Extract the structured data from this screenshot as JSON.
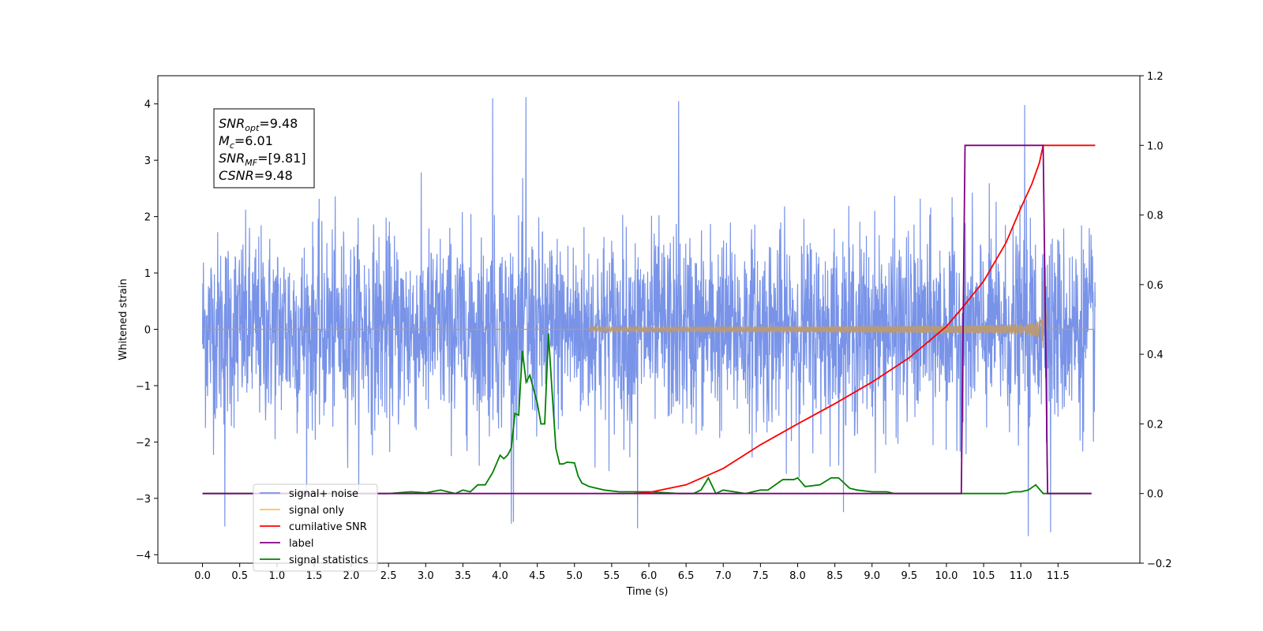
{
  "chart_data": {
    "type": "line",
    "title": "",
    "xlabel": "Time (s)",
    "ylabel": "Whitened strain",
    "xlim": [
      -0.6,
      12.6
    ],
    "ylim": [
      -4.15,
      4.5
    ],
    "y2lim": [
      -0.2,
      1.2
    ],
    "grid": false,
    "legend_position": "lower-left",
    "x_ticks": [
      "0.0",
      "0.5",
      "1.0",
      "1.5",
      "2.0",
      "2.5",
      "3.0",
      "3.5",
      "4.0",
      "4.5",
      "5.0",
      "5.5",
      "6.0",
      "6.5",
      "7.0",
      "7.5",
      "8.0",
      "8.5",
      "9.0",
      "9.5",
      "10.0",
      "10.5",
      "11.0",
      "11.5"
    ],
    "y_ticks": [
      "4",
      "3",
      "2",
      "1",
      "0",
      "−1",
      "−2",
      "−3",
      "−4"
    ],
    "y2_ticks": [
      "1.2",
      "1.0",
      "0.8",
      "0.6",
      "0.4",
      "0.2",
      "0.0",
      "−0.2"
    ],
    "annotation": {
      "lines": [
        {
          "sym": "SNR",
          "sub": "opt",
          "val": "=9.48"
        },
        {
          "sym": "M",
          "sub": "c",
          "val": "=6.01"
        },
        {
          "sym": "SNR",
          "sub": "MF",
          "val": "=[9.81]"
        },
        {
          "sym": "CSNR",
          "sub": "",
          "val": "=9.48"
        }
      ]
    },
    "series": [
      {
        "name": "signal+ noise",
        "axis": "left",
        "color": "#7893e8",
        "description_only_noise": true,
        "x_range": [
          0.0,
          12.0
        ],
        "noise_std": 1.0,
        "peaks": [
          [
            3.9,
            4.1
          ],
          [
            4.35,
            4.12
          ],
          [
            6.4,
            4.0
          ],
          [
            11.05,
            3.95
          ],
          [
            0.3,
            -3.5
          ],
          [
            4.15,
            -3.45
          ],
          [
            5.85,
            -3.5
          ],
          [
            11.1,
            -3.75
          ],
          [
            11.4,
            -3.6
          ]
        ]
      },
      {
        "name": "signal only",
        "axis": "left",
        "color": "#ffbf57",
        "x_range": [
          0.0,
          12.0
        ],
        "chirp_start": 5.8,
        "merger_time": 11.3,
        "peak_amplitude": 0.65,
        "ringdown_end": 11.36
      },
      {
        "name": "cumilative SNR",
        "axis": "right",
        "color": "#ff0000",
        "x": [
          5.8,
          6.0,
          6.5,
          7.0,
          7.5,
          8.0,
          8.5,
          9.0,
          9.5,
          10.0,
          10.2,
          10.5,
          10.8,
          11.0,
          11.15,
          11.25,
          11.3,
          11.5,
          12.0
        ],
        "values": [
          0.0,
          0.003,
          0.025,
          0.072,
          0.14,
          0.2,
          0.258,
          0.32,
          0.39,
          0.48,
          0.53,
          0.61,
          0.72,
          0.82,
          0.89,
          0.95,
          1.0,
          1.0,
          1.0
        ]
      },
      {
        "name": "label",
        "axis": "right",
        "color": "#800080",
        "x": [
          0.0,
          10.2,
          10.25,
          11.3,
          11.36,
          11.95
        ],
        "values": [
          0.0,
          0.0,
          1.0,
          1.0,
          0.0,
          0.0
        ]
      },
      {
        "name": "signal statistics",
        "axis": "right",
        "color": "#008000",
        "x": [
          0.0,
          2.5,
          2.8,
          3.0,
          3.2,
          3.4,
          3.5,
          3.6,
          3.7,
          3.8,
          3.9,
          4.0,
          4.05,
          4.1,
          4.15,
          4.2,
          4.25,
          4.3,
          4.35,
          4.4,
          4.45,
          4.5,
          4.55,
          4.6,
          4.65,
          4.7,
          4.75,
          4.8,
          4.85,
          4.9,
          5.0,
          5.05,
          5.1,
          5.2,
          5.4,
          5.6,
          5.8,
          6.0,
          6.4,
          6.6,
          6.7,
          6.8,
          6.9,
          7.0,
          7.3,
          7.5,
          7.6,
          7.8,
          7.95,
          8.0,
          8.1,
          8.3,
          8.45,
          8.55,
          8.7,
          8.8,
          9.0,
          9.2,
          9.3,
          9.5,
          10.0,
          10.5,
          10.8,
          10.9,
          11.0,
          11.1,
          11.2,
          11.3,
          11.5,
          11.95
        ],
        "values": [
          0.0,
          0.0,
          0.005,
          0.002,
          0.01,
          0.0,
          0.01,
          0.005,
          0.025,
          0.025,
          0.06,
          0.11,
          0.1,
          0.11,
          0.13,
          0.23,
          0.225,
          0.41,
          0.32,
          0.34,
          0.3,
          0.26,
          0.2,
          0.2,
          0.46,
          0.29,
          0.13,
          0.085,
          0.085,
          0.09,
          0.088,
          0.05,
          0.03,
          0.02,
          0.01,
          0.005,
          0.005,
          0.005,
          0.0,
          0.0,
          0.01,
          0.045,
          0.0,
          0.01,
          0.0,
          0.01,
          0.01,
          0.04,
          0.04,
          0.045,
          0.02,
          0.025,
          0.045,
          0.045,
          0.015,
          0.01,
          0.005,
          0.005,
          0.0,
          0.0,
          0.0,
          0.0,
          0.0,
          0.005,
          0.005,
          0.01,
          0.025,
          0.0,
          0.0,
          0.0
        ]
      }
    ]
  }
}
